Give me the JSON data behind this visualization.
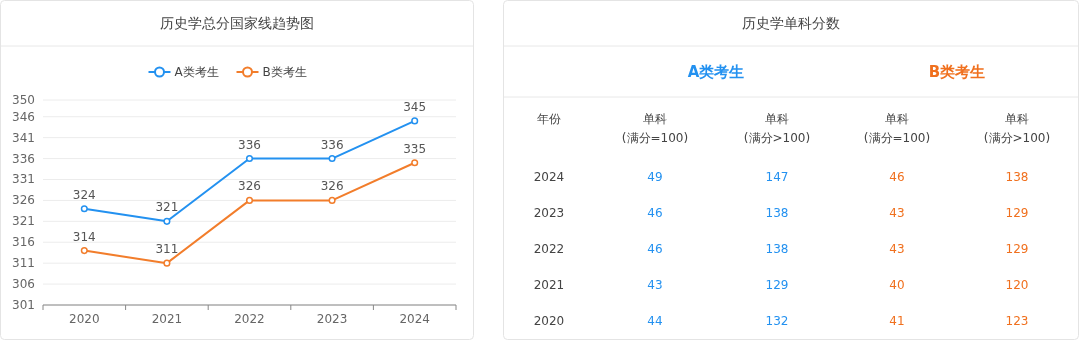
{
  "chart_data": [
    {
      "type": "line",
      "title": "历史学总分国家线趋势图",
      "categories": [
        "2020",
        "2021",
        "2022",
        "2023",
        "2024"
      ],
      "series": [
        {
          "name": "A类考生",
          "color": "#2391f0",
          "values": [
            324,
            321,
            336,
            336,
            345
          ]
        },
        {
          "name": "B类考生",
          "color": "#f27d2b",
          "values": [
            314,
            311,
            326,
            326,
            335
          ]
        }
      ],
      "ylim": [
        301,
        350
      ],
      "yticks": [
        301,
        306,
        311,
        316,
        321,
        326,
        331,
        336,
        341,
        346,
        350
      ],
      "grid": "y",
      "legend": "top",
      "marker": "circle",
      "line_style": "solid",
      "data_labels": true
    },
    {
      "type": "heatmap",
      "title": "历史学单科分数",
      "ylabel": "年份",
      "annotations": [
        "A类考生",
        "B类考生"
      ],
      "colors": [
        "#2391f0",
        "#2391f0",
        "#f0701e",
        "#f0701e"
      ],
      "data_labels": true,
      "categories": [
        "单科 (满分=100)",
        "单科 (满分>100)",
        "单科 (满分=100)",
        "单科 (满分>100)"
      ],
      "y_categories": [
        "2024",
        "2023",
        "2022",
        "2021",
        "2020"
      ],
      "cells": [
        [
          49,
          147,
          46,
          138
        ],
        [
          46,
          138,
          43,
          129
        ],
        [
          46,
          138,
          43,
          129
        ],
        [
          43,
          129,
          40,
          120
        ],
        [
          44,
          132,
          41,
          123
        ]
      ]
    }
  ]
}
